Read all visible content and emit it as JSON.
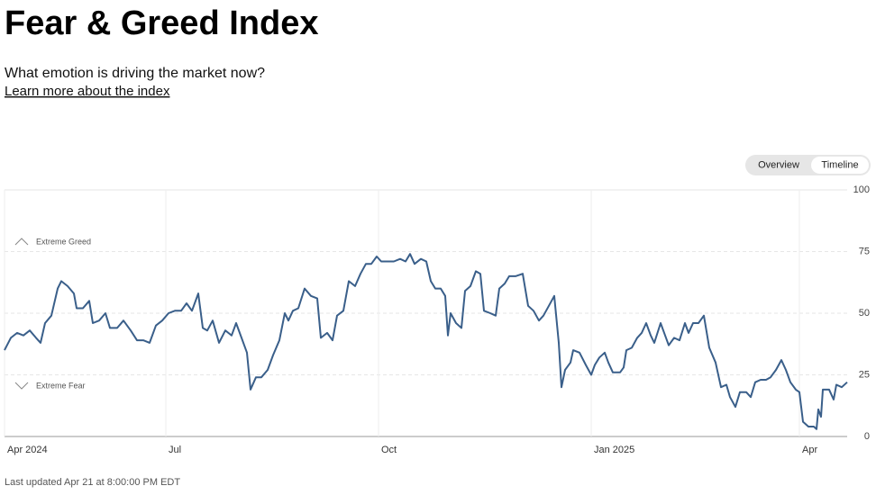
{
  "page": {
    "link": "Learn more about the index",
    "tabs": [
      "Overview",
      "Timeline"
    ],
    "footer": "Last updated Apr 21 at 8:00:00 PM EDT"
  },
  "chart_data": {
    "type": "line",
    "title": "Fear & Greed Index",
    "subtitle": "What emotion is driving the market now?",
    "annotations": [
      "Extreme Greed",
      "Extreme Fear"
    ],
    "x": [
      0,
      7,
      14,
      21,
      28,
      35,
      40,
      45,
      52,
      59,
      63,
      70,
      77,
      80,
      87,
      94,
      98,
      105,
      112,
      117,
      125,
      132,
      140,
      147,
      154,
      161,
      168,
      175,
      182,
      189,
      196,
      202,
      208,
      215,
      220,
      225,
      231,
      238,
      245,
      252,
      257,
      263,
      269,
      273,
      279,
      285,
      292,
      298,
      305,
      311,
      315,
      320,
      326,
      333,
      340,
      347,
      351,
      358,
      364,
      369,
      376,
      382,
      389,
      395,
      401,
      407,
      413,
      418,
      425,
      432,
      439,
      445,
      450,
      455,
      462,
      468,
      473,
      478,
      484,
      489,
      492,
      495,
      501,
      507,
      511,
      517,
      523,
      528,
      532,
      539,
      545,
      549,
      555,
      560,
      567,
      575,
      581,
      587,
      593,
      598,
      604,
      610,
      615,
      618,
      622,
      628,
      631,
      638,
      645,
      651,
      655,
      660,
      666,
      670,
      675,
      683,
      687,
      690,
      696,
      702,
      707,
      712,
      717,
      721,
      728,
      733,
      737,
      743,
      749,
      755,
      759,
      764,
      770,
      776,
      782,
      789,
      795,
      801,
      805,
      811,
      816,
      823,
      828,
      833,
      839,
      845,
      850,
      856,
      862,
      867,
      872,
      878,
      882,
      886,
      892,
      898,
      901,
      903,
      906,
      908,
      915,
      920,
      923,
      929,
      935
    ],
    "series": [
      {
        "name": "Fear & Greed Index",
        "color": "#3a5f8a",
        "values": [
          35,
          40,
          42,
          41,
          43,
          40,
          38,
          46,
          49,
          60,
          63,
          61,
          58,
          52,
          52,
          55,
          46,
          47,
          50,
          44,
          44,
          47,
          43,
          39,
          39,
          38,
          45,
          47,
          50,
          51,
          51,
          54,
          51,
          58,
          44,
          43,
          47,
          38,
          43,
          41,
          46,
          40,
          34,
          19,
          24,
          24,
          27,
          33,
          39,
          50,
          47,
          51,
          52,
          60,
          57,
          56,
          40,
          42,
          39,
          49,
          51,
          63,
          61,
          66,
          70,
          70,
          73,
          71,
          71,
          71,
          72,
          71,
          74,
          70,
          72,
          71,
          63,
          60,
          60,
          57,
          41,
          50,
          46,
          44,
          59,
          61,
          67,
          66,
          51,
          50,
          49,
          60,
          62,
          65,
          65,
          66,
          53,
          51,
          47,
          49,
          53,
          57,
          38,
          20,
          27,
          30,
          35,
          34,
          29,
          25,
          29,
          32,
          34,
          30,
          26,
          26,
          28,
          35,
          36,
          40,
          42,
          46,
          41,
          38,
          46,
          41,
          37,
          40,
          39,
          46,
          42,
          46,
          46,
          49,
          36,
          30,
          20,
          21,
          16,
          12,
          18,
          18,
          16,
          22,
          23,
          23,
          24,
          27,
          31,
          27,
          22,
          19,
          18,
          6,
          4,
          4,
          3,
          11,
          8,
          19,
          19,
          15,
          21,
          20,
          22
        ]
      }
    ],
    "xlim": [
      0,
      935
    ],
    "xticks": [
      {
        "value": 0,
        "label": "Apr 2024"
      },
      {
        "value": 179,
        "label": "Jul"
      },
      {
        "value": 415,
        "label": "Oct"
      },
      {
        "value": 651,
        "label": "Jan 2025"
      },
      {
        "value": 882,
        "label": "Apr"
      }
    ],
    "ylim": [
      0,
      100
    ],
    "yticks": [
      0,
      25,
      50,
      75,
      100
    ],
    "grid": true
  }
}
